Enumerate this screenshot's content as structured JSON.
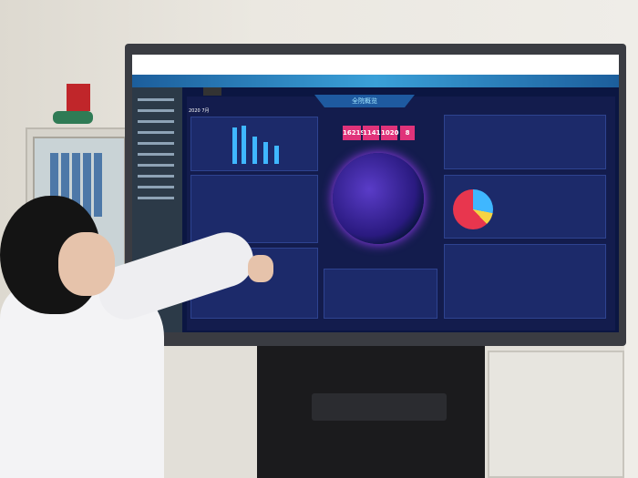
{
  "dashboard": {
    "title": "全院概览",
    "year": "2020",
    "month": "7月",
    "kpis": [
      "16219",
      "1141",
      "1020",
      "8"
    ],
    "colors": {
      "background": "#0b1642",
      "kpi": "#e0337a",
      "accent": "#3fb7ff"
    }
  }
}
